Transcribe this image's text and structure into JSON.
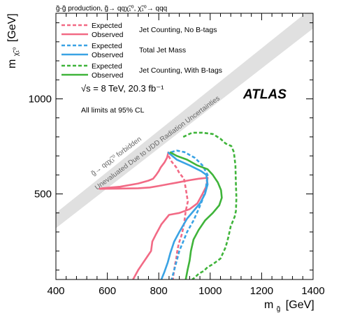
{
  "chart_data": {
    "type": "line",
    "title": "g̃-g̃ production, g̃→ qqχ̃₁⁰, χ̃₁⁰→ qqq",
    "xlabel": "m",
    "xlabel_sub": "g̃",
    "xlabel_unit": "[GeV]",
    "ylabel": "m",
    "ylabel_sub": "χ̃₁⁰",
    "ylabel_unit": "[GeV]",
    "xlim": [
      400,
      1400
    ],
    "ylim": [
      50,
      1450
    ],
    "x_ticks": [
      400,
      600,
      800,
      1000,
      1200,
      1400
    ],
    "y_ticks": [
      500,
      1000
    ],
    "legend_position": "top-left",
    "energy_label": "√s = 8 TeV, 20.3 fb⁻¹",
    "experiment_label": "ATLAS",
    "note": "All limits at 95% CL",
    "band_labels": [
      "g̃→ qqχ̃₁⁰ forbidden",
      "Unevaluated Due to UDD Radiation Uncertainties"
    ],
    "groups": [
      {
        "label": "Jet Counting, No B-tags",
        "color": "#f26a85"
      },
      {
        "label": "Total Jet Mass",
        "color": "#3aa3e4"
      },
      {
        "label": "Jet Counting, With B-tags",
        "color": "#3fb43a"
      }
    ],
    "series": [
      {
        "name": "Expected",
        "group": 0,
        "color": "#f26a85",
        "style": "dashed",
        "x": [
          838,
          850,
          868,
          880,
          898,
          906,
          913,
          905,
          900,
          895,
          888,
          878,
          872,
          868,
          862,
          860,
          858,
          856,
          855
        ],
        "y": [
          700,
          670,
          640,
          610,
          580,
          520,
          460,
          410,
          360,
          320,
          280,
          240,
          200,
          160,
          120,
          100,
          80,
          60,
          50
        ]
      },
      {
        "name": "Observed",
        "group": 0,
        "color": "#f26a85",
        "style": "solid",
        "x": [
          838,
          832,
          822,
          808,
          800,
          790,
          778,
          760,
          720,
          650,
          580,
          570,
          640,
          720,
          765,
          800,
          840,
          880,
          920,
          955,
          990,
          985,
          970,
          950,
          920,
          880,
          840,
          810,
          790,
          775,
          770,
          760,
          750,
          735,
          720,
          708,
          700
        ],
        "y": [
          722,
          690,
          665,
          640,
          620,
          600,
          580,
          570,
          555,
          538,
          530,
          527,
          528,
          530,
          534,
          542,
          552,
          562,
          572,
          580,
          585,
          540,
          500,
          450,
          420,
          400,
          390,
          340,
          290,
          250,
          200,
          180,
          160,
          130,
          100,
          70,
          50
        ]
      },
      {
        "name": "Expected",
        "group": 1,
        "color": "#3aa3e4",
        "style": "dashed",
        "x": [
          848,
          870,
          900,
          940,
          970,
          990,
          982,
          970,
          955,
          935,
          910,
          895,
          880,
          870,
          860,
          850
        ],
        "y": [
          720,
          728,
          720,
          690,
          650,
          600,
          520,
          470,
          420,
          360,
          300,
          250,
          200,
          150,
          100,
          50
        ]
      },
      {
        "name": "Observed",
        "group": 1,
        "color": "#3aa3e4",
        "style": "solid",
        "x": [
          835,
          870,
          920,
          965,
          985,
          990,
          980,
          960,
          935,
          910,
          880,
          860,
          845,
          835,
          822,
          810
        ],
        "y": [
          720,
          680,
          650,
          620,
          600,
          550,
          500,
          450,
          410,
          370,
          300,
          250,
          190,
          140,
          90,
          50
        ]
      },
      {
        "name": "Expected",
        "group": 2,
        "color": "#3fb43a",
        "style": "dashed",
        "x": [
          895,
          930,
          970,
          1010,
          1040,
          1060,
          1082,
          1092,
          1098,
          1100,
          1102,
          1100,
          1095,
          1080,
          1070,
          1060,
          1040,
          1010,
          990,
          975,
          955,
          940,
          930
        ],
        "y": [
          800,
          822,
          822,
          815,
          790,
          765,
          752,
          720,
          650,
          550,
          480,
          410,
          380,
          330,
          270,
          220,
          160,
          130,
          115,
          95,
          80,
          60,
          50
        ]
      },
      {
        "name": "Observed",
        "group": 2,
        "color": "#3fb43a",
        "style": "solid",
        "x": [
          843,
          870,
          910,
          950,
          990,
          1010,
          1030,
          1042,
          1045,
          1035,
          1010,
          980,
          955,
          935,
          925,
          920,
          912,
          905
        ],
        "y": [
          720,
          700,
          680,
          650,
          630,
          600,
          560,
          520,
          480,
          440,
          400,
          360,
          310,
          260,
          200,
          150,
          100,
          50
        ]
      }
    ]
  }
}
